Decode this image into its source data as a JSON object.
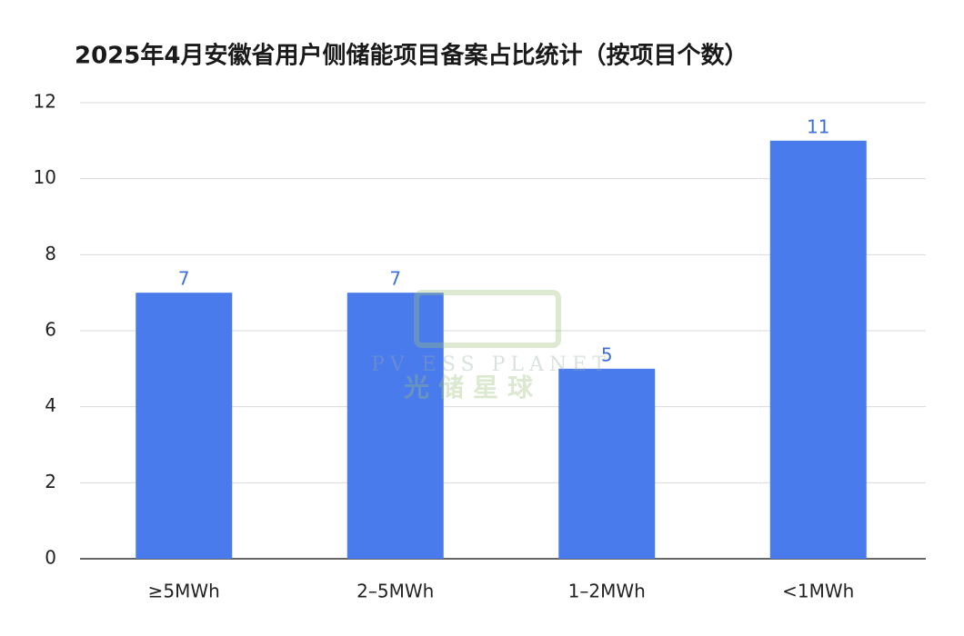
{
  "chart_data": {
    "type": "bar",
    "title": "2025年4月安徽省用户侧储能项目备案占比统计（按项目个数）",
    "categories": [
      "≥5MWh",
      "2–5MWh",
      "1–2MWh",
      "<1MWh"
    ],
    "values": [
      7,
      7,
      5,
      11
    ],
    "color": "#4a7bec",
    "value_label_color": "#3f6fd8",
    "ylim": [
      0,
      12
    ],
    "yticks": [
      0,
      2,
      4,
      6,
      8,
      10,
      12
    ],
    "grid": true
  },
  "watermark": {
    "text_en": "PV ESS PLANET",
    "text_cn": "光储星球"
  }
}
